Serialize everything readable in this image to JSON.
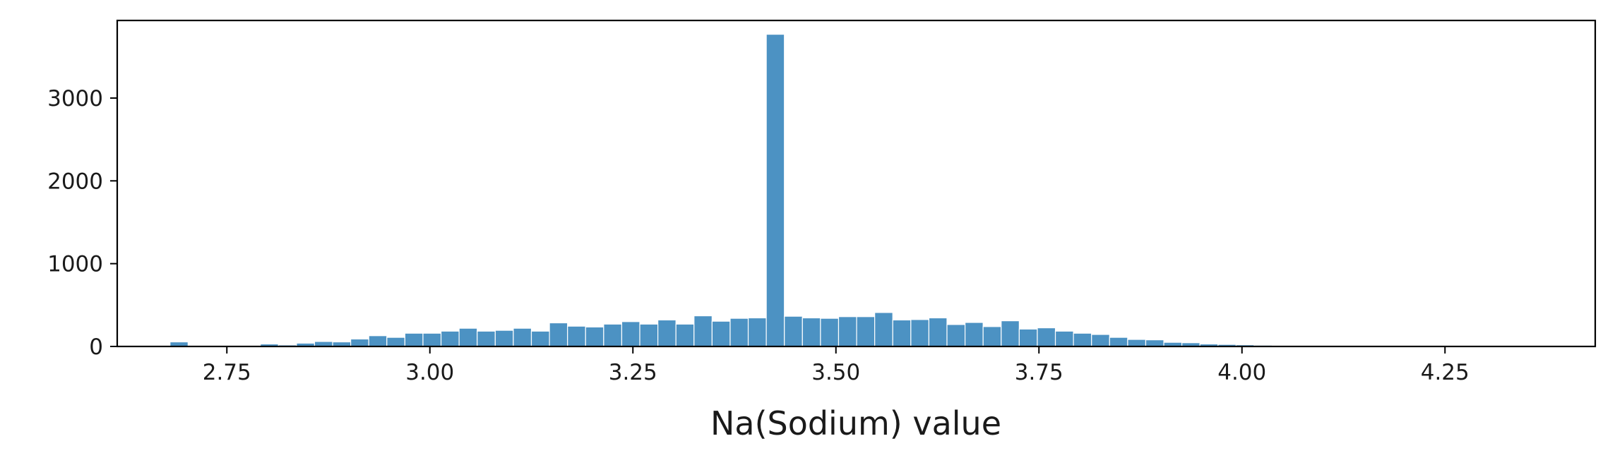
{
  "chart_data": {
    "type": "bar",
    "title": "",
    "xlabel": "Na(Sodium) value",
    "ylabel": "",
    "bar_color": "#4c92c3",
    "edge_color": "#ffffff",
    "grid": false,
    "xlim": [
      2.615,
      4.435
    ],
    "ylim": [
      0,
      3937
    ],
    "x_ticks": [
      2.75,
      3.0,
      3.25,
      3.5,
      3.75,
      4.0,
      4.25
    ],
    "x_tick_labels": [
      "2.75",
      "3.00",
      "3.25",
      "3.50",
      "3.75",
      "4.00",
      "4.25"
    ],
    "y_ticks": [
      0,
      1000,
      2000,
      3000
    ],
    "y_tick_labels": [
      "0",
      "1000",
      "2000",
      "3000"
    ],
    "bin_start": 2.68,
    "bin_width": 0.02225,
    "values": [
      55,
      0,
      0,
      0,
      12,
      30,
      18,
      40,
      60,
      55,
      90,
      130,
      110,
      160,
      160,
      185,
      220,
      185,
      195,
      220,
      185,
      285,
      245,
      235,
      270,
      300,
      270,
      320,
      270,
      370,
      305,
      340,
      345,
      3770,
      365,
      345,
      340,
      360,
      360,
      410,
      320,
      325,
      345,
      265,
      290,
      240,
      310,
      210,
      225,
      185,
      160,
      145,
      110,
      85,
      80,
      50,
      45,
      30,
      25,
      20,
      15,
      10,
      5,
      0,
      0,
      0,
      0,
      0,
      0,
      0,
      0,
      0,
      0,
      0,
      0,
      0,
      0,
      0,
      0,
      0,
      0,
      0,
      0,
      0,
      0,
      0,
      0,
      0,
      0,
      55
    ]
  }
}
